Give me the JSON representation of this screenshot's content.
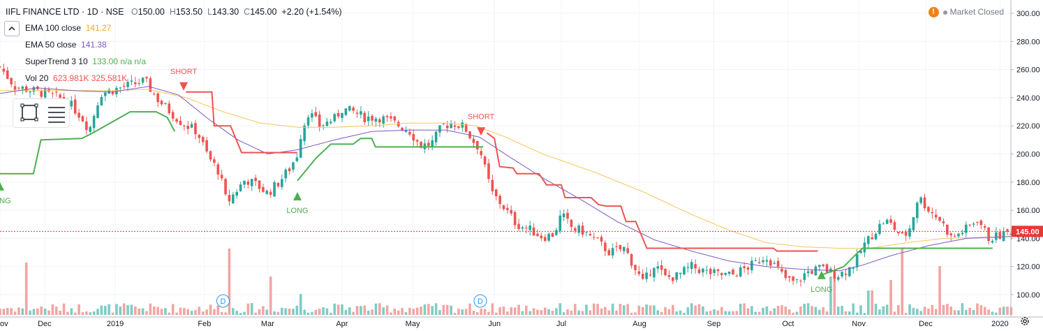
{
  "symbol": {
    "title": "IIFL FINANCE LTD · 1D · NSE",
    "open_label": "O",
    "open": "150.00",
    "high_label": "H",
    "high": "153.50",
    "low_label": "L",
    "low": "143.30",
    "close_label": "C",
    "close": "145.00",
    "change": "+2.20 (+1.54%)"
  },
  "indicators": [
    {
      "label": "EMA 100 close",
      "values": "141.27",
      "color": "#f5a623"
    },
    {
      "label": "EMA 50 close",
      "values": "141.38",
      "color": "#7e57c2"
    },
    {
      "label": "SuperTrend 3 10",
      "values": "133.00  n/a  n/a",
      "color": "#4caf50"
    },
    {
      "label": "Vol 20",
      "values": "623.981K  325.581K",
      "color": "#ef5350"
    }
  ],
  "status": {
    "market": "Market Closed",
    "warning_icon": "!"
  },
  "colors": {
    "up": "#26a69a",
    "down": "#ef5350",
    "vol_up": "#7fccc4",
    "vol_down": "#f2a5a3",
    "ema100": "#f6c55a",
    "ema50": "#7e57c2",
    "st_up": "#4caf50",
    "st_down": "#f05252",
    "price_line": "#e53935"
  },
  "chart_data": {
    "type": "candlestick",
    "title": "IIFL FINANCE LTD · 1D · NSE",
    "x_ticks": [
      "ov",
      "Dec",
      "2019",
      "Feb",
      "Mar",
      "Apr",
      "May",
      "Jun",
      "Jul",
      "Aug",
      "Sep",
      "Oct",
      "Nov",
      "Dec",
      "2020"
    ],
    "x_tick_pos": [
      0,
      0.6,
      1.55,
      2.75,
      3.6,
      4.6,
      5.55,
      6.65,
      7.55,
      8.6,
      9.6,
      10.6,
      11.55,
      12.45,
      13.45
    ],
    "y_ticks": [
      "100.00",
      "120.00",
      "140.00",
      "160.00",
      "180.00",
      "200.00",
      "220.00",
      "240.00",
      "260.00",
      "280.00",
      "300.00"
    ],
    "ylim": [
      93,
      303
    ],
    "xlim": [
      0,
      13.6
    ],
    "last_price": "145.00",
    "close_anchors": [
      [
        0,
        262
      ],
      [
        0.2,
        248
      ],
      [
        0.6,
        243
      ],
      [
        0.9,
        238
      ],
      [
        1.1,
        226
      ],
      [
        1.2,
        217
      ],
      [
        1.35,
        243
      ],
      [
        1.55,
        246
      ],
      [
        1.95,
        252
      ],
      [
        2.1,
        240
      ],
      [
        2.25,
        232
      ],
      [
        2.45,
        222
      ],
      [
        2.65,
        216
      ],
      [
        2.8,
        198
      ],
      [
        2.95,
        187
      ],
      [
        3.05,
        165
      ],
      [
        3.15,
        172
      ],
      [
        3.3,
        182
      ],
      [
        3.45,
        178
      ],
      [
        3.6,
        172
      ],
      [
        3.75,
        180
      ],
      [
        3.9,
        190
      ],
      [
        4.0,
        200
      ],
      [
        4.05,
        215
      ],
      [
        4.15,
        230
      ],
      [
        4.3,
        220
      ],
      [
        4.5,
        225
      ],
      [
        4.6,
        232
      ],
      [
        4.75,
        230
      ],
      [
        4.9,
        226
      ],
      [
        5.1,
        226
      ],
      [
        5.3,
        222
      ],
      [
        5.5,
        217
      ],
      [
        5.65,
        206
      ],
      [
        5.8,
        207
      ],
      [
        5.95,
        220
      ],
      [
        6.1,
        222
      ],
      [
        6.25,
        219
      ],
      [
        6.35,
        210
      ],
      [
        6.45,
        204
      ],
      [
        6.55,
        184
      ],
      [
        6.62,
        172
      ],
      [
        6.75,
        164
      ],
      [
        6.95,
        150
      ],
      [
        7.1,
        147
      ],
      [
        7.3,
        141
      ],
      [
        7.45,
        143
      ],
      [
        7.55,
        157
      ],
      [
        7.7,
        147
      ],
      [
        7.85,
        145
      ],
      [
        8.05,
        137
      ],
      [
        8.2,
        130
      ],
      [
        8.4,
        133
      ],
      [
        8.55,
        118
      ],
      [
        8.65,
        108
      ],
      [
        8.8,
        122
      ],
      [
        8.95,
        112
      ],
      [
        9.1,
        113
      ],
      [
        9.3,
        120
      ],
      [
        9.5,
        116
      ],
      [
        9.7,
        114
      ],
      [
        9.85,
        114
      ],
      [
        10.0,
        118
      ],
      [
        10.15,
        122
      ],
      [
        10.3,
        128
      ],
      [
        10.45,
        119
      ],
      [
        10.55,
        112
      ],
      [
        10.7,
        108
      ],
      [
        10.85,
        116
      ],
      [
        11.05,
        119
      ],
      [
        11.25,
        114
      ],
      [
        11.35,
        116
      ],
      [
        11.5,
        122
      ],
      [
        11.6,
        134
      ],
      [
        11.75,
        144
      ],
      [
        11.9,
        153
      ],
      [
        12.0,
        149
      ],
      [
        12.15,
        140
      ],
      [
        12.25,
        149
      ],
      [
        12.35,
        170
      ],
      [
        12.5,
        160
      ],
      [
        12.65,
        153
      ],
      [
        12.8,
        140
      ],
      [
        13.0,
        147
      ],
      [
        13.15,
        154
      ],
      [
        13.3,
        140
      ],
      [
        13.45,
        142
      ],
      [
        13.6,
        145
      ]
    ],
    "ema50_anchors": [
      [
        0,
        243
      ],
      [
        0.5,
        247
      ],
      [
        1.0,
        245
      ],
      [
        1.5,
        244
      ],
      [
        2.0,
        248
      ],
      [
        2.4,
        242
      ],
      [
        2.8,
        225
      ],
      [
        3.2,
        210
      ],
      [
        3.6,
        200
      ],
      [
        4.0,
        203
      ],
      [
        4.5,
        210
      ],
      [
        5.0,
        216
      ],
      [
        5.5,
        217
      ],
      [
        6.0,
        217
      ],
      [
        6.45,
        212
      ],
      [
        6.85,
        198
      ],
      [
        7.3,
        183
      ],
      [
        7.8,
        168
      ],
      [
        8.3,
        152
      ],
      [
        8.8,
        139
      ],
      [
        9.3,
        131
      ],
      [
        9.8,
        124
      ],
      [
        10.3,
        120
      ],
      [
        10.8,
        118
      ],
      [
        11.3,
        117
      ],
      [
        11.6,
        121
      ],
      [
        12.0,
        128
      ],
      [
        12.5,
        135
      ],
      [
        13.0,
        140
      ],
      [
        13.6,
        141.4
      ]
    ],
    "ema100_anchors": [
      [
        0,
        245
      ],
      [
        1.0,
        245
      ],
      [
        1.5,
        245
      ],
      [
        2.0,
        246
      ],
      [
        2.5,
        240
      ],
      [
        3.0,
        230
      ],
      [
        3.5,
        222
      ],
      [
        4.0,
        219
      ],
      [
        4.5,
        219
      ],
      [
        5.0,
        220
      ],
      [
        5.5,
        222
      ],
      [
        6.0,
        222
      ],
      [
        6.4,
        220
      ],
      [
        6.8,
        212
      ],
      [
        7.3,
        200
      ],
      [
        8.0,
        187
      ],
      [
        8.7,
        172
      ],
      [
        9.3,
        157
      ],
      [
        9.8,
        146
      ],
      [
        10.3,
        137
      ],
      [
        10.8,
        134
      ],
      [
        11.3,
        133
      ],
      [
        11.7,
        133
      ],
      [
        12.2,
        137
      ],
      [
        12.7,
        140
      ],
      [
        13.6,
        141.3
      ]
    ],
    "supertrend": [
      {
        "dir": "up",
        "pts": [
          [
            0,
            186
          ],
          [
            0.45,
            186
          ],
          [
            0.55,
            210
          ],
          [
            1.1,
            211
          ],
          [
            1.25,
            215
          ],
          [
            1.45,
            221
          ],
          [
            1.75,
            230
          ],
          [
            2.1,
            230
          ],
          [
            2.25,
            226
          ],
          [
            2.35,
            216
          ]
        ]
      },
      {
        "dir": "down",
        "pts": [
          [
            2.5,
            244
          ],
          [
            2.85,
            244
          ],
          [
            2.88,
            220
          ],
          [
            3.1,
            220
          ],
          [
            3.25,
            201
          ],
          [
            4.0,
            201
          ]
        ]
      },
      {
        "dir": "up",
        "pts": [
          [
            4.0,
            181
          ],
          [
            4.25,
            197
          ],
          [
            4.45,
            207
          ],
          [
            4.75,
            207
          ],
          [
            4.85,
            211
          ],
          [
            5.0,
            211
          ],
          [
            5.05,
            205
          ],
          [
            6.5,
            205
          ]
        ]
      },
      {
        "dir": "down",
        "pts": [
          [
            6.55,
            215
          ],
          [
            6.65,
            211
          ],
          [
            6.72,
            191
          ],
          [
            6.9,
            190
          ],
          [
            6.95,
            186
          ],
          [
            7.25,
            186
          ],
          [
            7.35,
            178
          ],
          [
            7.55,
            178
          ],
          [
            7.6,
            169
          ],
          [
            7.95,
            169
          ],
          [
            8.05,
            164
          ],
          [
            8.15,
            163
          ],
          [
            8.35,
            163
          ],
          [
            8.42,
            152
          ],
          [
            8.55,
            152
          ],
          [
            8.7,
            133
          ],
          [
            10.4,
            133
          ],
          [
            10.45,
            131
          ],
          [
            11.0,
            131
          ]
        ]
      },
      {
        "dir": "up",
        "pts": [
          [
            11.05,
            114
          ],
          [
            11.35,
            120
          ],
          [
            11.5,
            128
          ],
          [
            11.6,
            133
          ],
          [
            13.35,
            133
          ]
        ]
      }
    ],
    "signals": [
      {
        "type": "LONG",
        "x": 0.0,
        "y": 177
      },
      {
        "type": "SHORT",
        "x": 2.47,
        "y": 248
      },
      {
        "type": "LONG",
        "x": 4.0,
        "y": 170
      },
      {
        "type": "SHORT",
        "x": 6.47,
        "y": 216
      },
      {
        "type": "LONG",
        "x": 11.05,
        "y": 114
      }
    ],
    "dividend_markers": [
      {
        "label": "D",
        "x": 3.0
      },
      {
        "label": "D",
        "x": 6.46
      }
    ],
    "volume_spikes": [
      [
        0.35,
        0.75,
        "up"
      ],
      [
        3.1,
        0.95,
        "down"
      ],
      [
        3.65,
        0.55,
        "down"
      ],
      [
        4.05,
        0.3,
        "up"
      ],
      [
        11.2,
        0.55,
        "up"
      ],
      [
        11.7,
        0.35,
        "up"
      ],
      [
        12.0,
        0.5,
        "up"
      ],
      [
        12.15,
        0.95,
        "up"
      ],
      [
        12.65,
        0.7,
        "down"
      ]
    ]
  }
}
